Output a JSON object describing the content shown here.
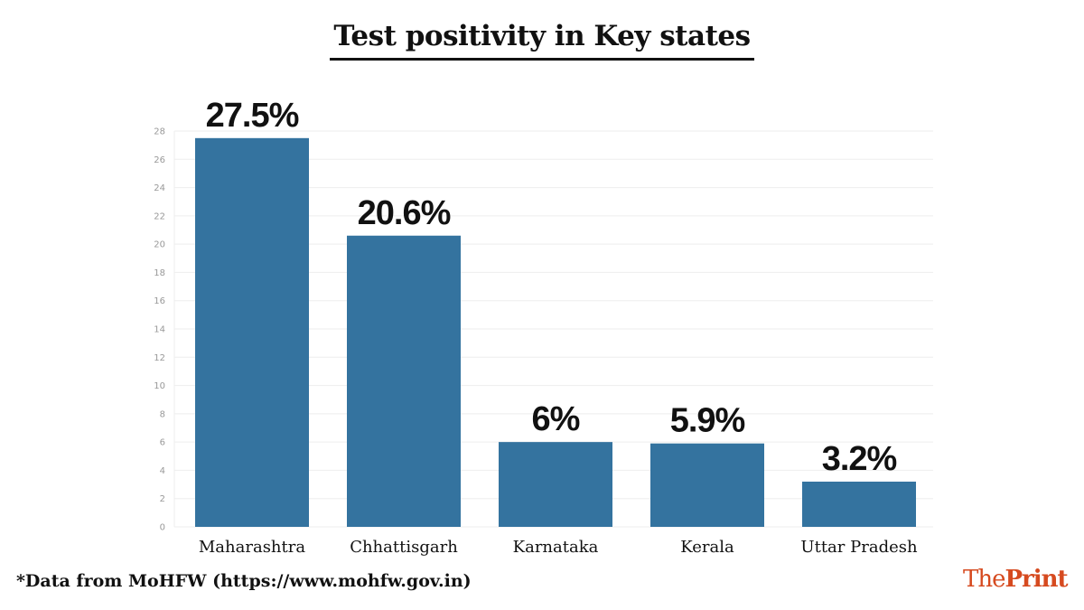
{
  "chart_data": {
    "type": "bar",
    "title": "Test positivity in Key states",
    "categories": [
      "Maharashtra",
      "Chhattisgarh",
      "Karnataka",
      "Kerala",
      "Uttar Pradesh"
    ],
    "values": [
      27.5,
      20.6,
      6,
      5.9,
      3.2
    ],
    "data_labels": [
      "27.5%",
      "20.6%",
      "6%",
      "5.9%",
      "3.2%"
    ],
    "xlabel": "",
    "ylabel": "",
    "ylim": [
      0,
      28
    ],
    "yticks": [
      0,
      2,
      4,
      6,
      8,
      10,
      12,
      14,
      16,
      18,
      20,
      22,
      24,
      26,
      28
    ],
    "grid": true,
    "bar_color": "#34739f"
  },
  "footnote": "*Data from MoHFW (https://www.mohfw.gov.in)",
  "logo": {
    "part1": "The",
    "part2": "Print",
    "color": "#d64a1f"
  }
}
